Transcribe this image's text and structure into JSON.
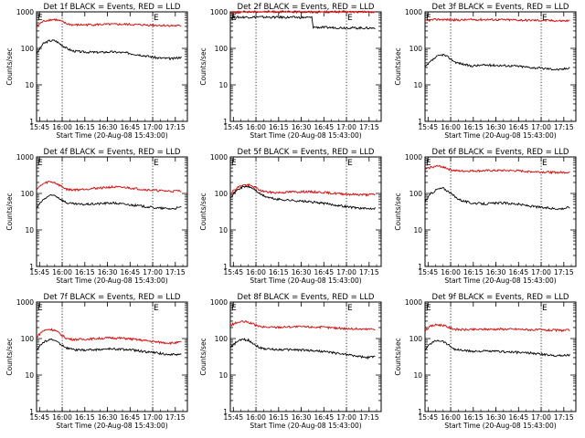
{
  "figure": {
    "xlabel": "Start Time (20-Aug-08 15:43:00)",
    "ylabel": "Counts/sec",
    "x_tick_labels": [
      "15:45",
      "16:00",
      "16:15",
      "16:30",
      "16:45",
      "17:00",
      "17:15"
    ],
    "y_tick_labels": [
      "1",
      "10",
      "100",
      "1000"
    ],
    "colors": {
      "events": "#000000",
      "lld": "#e00000",
      "axes": "#000000"
    }
  },
  "chart_data": [
    {
      "type": "line",
      "title": "Det 1f BLACK = Events, RED = LLD",
      "marks": [
        "E",
        "E"
      ],
      "x_unit": "minutes after 15:43:00",
      "x": [
        0,
        4,
        8,
        12,
        16,
        20,
        24,
        30,
        40,
        50,
        60,
        70,
        80,
        90,
        96
      ],
      "ylim": [
        1,
        1000
      ],
      "yscale": "log",
      "series": [
        {
          "name": "BLACK = Events",
          "color": "#000000",
          "values": [
            70,
            130,
            160,
            165,
            130,
            100,
            85,
            80,
            78,
            80,
            75,
            65,
            55,
            52,
            58
          ]
        },
        {
          "name": "RED = LLD",
          "color": "#e00000",
          "values": [
            400,
            540,
            600,
            620,
            560,
            470,
            440,
            440,
            450,
            455,
            455,
            440,
            430,
            420,
            410
          ]
        }
      ]
    },
    {
      "type": "line",
      "title": "Det 2f BLACK = Events, RED = LLD",
      "marks": [
        "E",
        "E"
      ],
      "x_unit": "minutes after 15:43:00",
      "x": [
        0,
        10,
        20,
        30,
        40,
        50,
        54,
        55,
        60,
        70,
        80,
        90,
        96
      ],
      "ylim": [
        1,
        1000
      ],
      "yscale": "log",
      "series": [
        {
          "name": "BLACK = Events",
          "color": "#000000",
          "values": [
            700,
            720,
            720,
            710,
            710,
            700,
            700,
            380,
            375,
            370,
            365,
            360,
            360
          ]
        },
        {
          "name": "RED = LLD",
          "color": "#e00000",
          "values": [
            950,
            1000,
            1010,
            1010,
            1000,
            1000,
            1000,
            990,
            1000,
            1000,
            1000,
            990,
            990
          ]
        }
      ]
    },
    {
      "type": "line",
      "title": "Det 3f BLACK = Events, RED = LLD",
      "marks": [
        "E",
        "E"
      ],
      "x_unit": "minutes after 15:43:00",
      "x": [
        0,
        4,
        8,
        12,
        16,
        20,
        24,
        30,
        40,
        50,
        60,
        70,
        80,
        90,
        96
      ],
      "ylim": [
        1,
        1000
      ],
      "yscale": "log",
      "series": [
        {
          "name": "BLACK = Events",
          "color": "#000000",
          "values": [
            30,
            45,
            60,
            68,
            55,
            42,
            38,
            33,
            35,
            34,
            33,
            30,
            28,
            26,
            30
          ]
        },
        {
          "name": "RED = LLD",
          "color": "#e00000",
          "values": [
            560,
            600,
            620,
            620,
            610,
            600,
            600,
            610,
            615,
            610,
            600,
            590,
            580,
            570,
            570
          ]
        }
      ]
    },
    {
      "type": "line",
      "title": "Det 4f BLACK = Events, RED = LLD",
      "marks": [
        "E",
        "E"
      ],
      "x_unit": "minutes after 15:43:00",
      "x": [
        0,
        4,
        8,
        12,
        16,
        20,
        24,
        30,
        40,
        50,
        60,
        70,
        80,
        90,
        96
      ],
      "ylim": [
        1,
        1000
      ],
      "yscale": "log",
      "series": [
        {
          "name": "BLACK = Events",
          "color": "#000000",
          "values": [
            40,
            65,
            85,
            90,
            70,
            55,
            52,
            50,
            52,
            55,
            50,
            45,
            40,
            38,
            42
          ]
        },
        {
          "name": "RED = LLD",
          "color": "#e00000",
          "values": [
            130,
            180,
            210,
            200,
            160,
            130,
            125,
            130,
            140,
            150,
            145,
            130,
            120,
            115,
            120
          ]
        }
      ]
    },
    {
      "type": "line",
      "title": "Det 5f BLACK = Events, RED = LLD",
      "marks": [
        "E",
        "E"
      ],
      "x_unit": "minutes after 15:43:00",
      "x": [
        0,
        4,
        8,
        12,
        16,
        20,
        24,
        30,
        40,
        50,
        60,
        70,
        80,
        90,
        96
      ],
      "ylim": [
        1,
        1000
      ],
      "yscale": "log",
      "series": [
        {
          "name": "BLACK = Events",
          "color": "#000000",
          "values": [
            80,
            120,
            150,
            155,
            130,
            95,
            80,
            70,
            65,
            60,
            55,
            48,
            42,
            38,
            40
          ]
        },
        {
          "name": "RED = LLD",
          "color": "#e00000",
          "values": [
            100,
            140,
            170,
            170,
            150,
            120,
            110,
            105,
            110,
            112,
            108,
            100,
            95,
            92,
            95
          ]
        }
      ]
    },
    {
      "type": "line",
      "title": "Det 6f BLACK = Events, RED = LLD",
      "marks": [
        "E",
        "E"
      ],
      "x_unit": "minutes after 15:43:00",
      "x": [
        0,
        4,
        8,
        12,
        16,
        20,
        24,
        30,
        40,
        50,
        60,
        70,
        80,
        90,
        96
      ],
      "ylim": [
        1,
        1000
      ],
      "yscale": "log",
      "series": [
        {
          "name": "BLACK = Events",
          "color": "#000000",
          "values": [
            60,
            100,
            130,
            140,
            110,
            80,
            65,
            55,
            52,
            55,
            52,
            45,
            40,
            38,
            42
          ]
        },
        {
          "name": "RED = LLD",
          "color": "#e00000",
          "values": [
            450,
            530,
            560,
            540,
            460,
            420,
            410,
            415,
            420,
            425,
            420,
            400,
            385,
            375,
            385
          ]
        }
      ]
    },
    {
      "type": "line",
      "title": "Det 7f BLACK = Events, RED = LLD",
      "marks": [
        "E",
        "E"
      ],
      "x_unit": "minutes after 15:43:00",
      "x": [
        0,
        4,
        8,
        12,
        16,
        20,
        24,
        30,
        40,
        50,
        60,
        70,
        80,
        90,
        96
      ],
      "ylim": [
        1,
        1000
      ],
      "yscale": "log",
      "series": [
        {
          "name": "BLACK = Events",
          "color": "#000000",
          "values": [
            50,
            75,
            95,
            90,
            70,
            55,
            50,
            48,
            50,
            52,
            50,
            45,
            40,
            36,
            38
          ]
        },
        {
          "name": "RED = LLD",
          "color": "#e00000",
          "values": [
            110,
            160,
            180,
            170,
            130,
            100,
            95,
            95,
            100,
            105,
            100,
            90,
            80,
            75,
            80
          ]
        }
      ]
    },
    {
      "type": "line",
      "title": "Det 8f BLACK = Events, RED = LLD",
      "marks": [
        "E",
        "E"
      ],
      "x_unit": "minutes after 15:43:00",
      "x": [
        0,
        4,
        8,
        12,
        16,
        20,
        24,
        30,
        40,
        50,
        60,
        70,
        80,
        90,
        96
      ],
      "ylim": [
        1,
        1000
      ],
      "yscale": "log",
      "series": [
        {
          "name": "BLACK = Events",
          "color": "#000000",
          "values": [
            55,
            80,
            95,
            90,
            70,
            55,
            52,
            50,
            50,
            48,
            45,
            40,
            35,
            30,
            32
          ]
        },
        {
          "name": "RED = LLD",
          "color": "#e00000",
          "values": [
            230,
            270,
            290,
            280,
            240,
            210,
            205,
            205,
            210,
            210,
            205,
            195,
            185,
            180,
            185
          ]
        }
      ]
    },
    {
      "type": "line",
      "title": "Det 9f BLACK = Events, RED = LLD",
      "marks": [
        "E",
        "E"
      ],
      "x_unit": "minutes after 15:43:00",
      "x": [
        0,
        4,
        8,
        12,
        16,
        20,
        24,
        30,
        40,
        50,
        60,
        70,
        80,
        90,
        96
      ],
      "ylim": [
        1,
        1000
      ],
      "yscale": "log",
      "series": [
        {
          "name": "BLACK = Events",
          "color": "#000000",
          "values": [
            50,
            75,
            90,
            85,
            65,
            50,
            48,
            45,
            45,
            44,
            42,
            40,
            36,
            34,
            36
          ]
        },
        {
          "name": "RED = LLD",
          "color": "#e00000",
          "values": [
            170,
            220,
            240,
            230,
            200,
            180,
            175,
            175,
            180,
            182,
            180,
            175,
            170,
            168,
            170
          ]
        }
      ]
    }
  ]
}
